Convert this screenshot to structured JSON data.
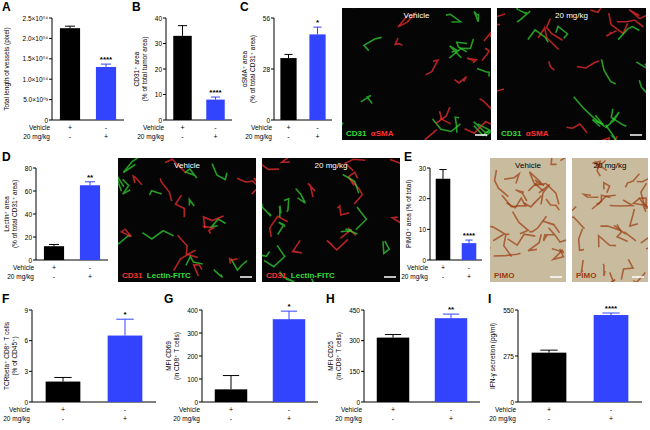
{
  "chart_data": [
    {
      "type": "bar",
      "title": "A",
      "ylabel": [
        "Total length of vessels (pixel)"
      ],
      "x_rows": [
        {
          "label": "Vehicle",
          "marks": [
            "+",
            "-"
          ]
        },
        {
          "label": "20 mg/kg",
          "marks": [
            "-",
            "+"
          ]
        }
      ],
      "values": [
        22500,
        13000
      ],
      "errors": [
        500,
        700
      ],
      "colors": [
        "#000000",
        "#3344ff"
      ],
      "significance": [
        null,
        "****"
      ],
      "ylim": [
        0,
        25000
      ],
      "yticks": [
        0,
        {
          "value": 5000,
          "label": "5.0×10⁰³"
        },
        {
          "value": 10000,
          "label": "1.0×10⁰⁴"
        },
        {
          "value": 15000,
          "label": "1.5×10⁰⁴"
        },
        {
          "value": 20000,
          "label": "2.0×10⁰⁴"
        },
        {
          "value": 25000,
          "label": "2.5×10⁰⁴"
        }
      ]
    },
    {
      "type": "bar",
      "title": "B",
      "ylabel": [
        "CD31⁺ area",
        "(% of total tumor area)"
      ],
      "x_rows": [
        {
          "label": "Vehicle",
          "marks": [
            "+",
            "-"
          ]
        },
        {
          "label": "20 mg/kg",
          "marks": [
            "-",
            "+"
          ]
        }
      ],
      "values": [
        33,
        8
      ],
      "errors": [
        4,
        1
      ],
      "colors": [
        "#000000",
        "#3344ff"
      ],
      "significance": [
        null,
        "****"
      ],
      "ylim": [
        0,
        40
      ],
      "yticks": [
        0,
        10,
        20,
        30,
        40
      ]
    },
    {
      "type": "bar",
      "title": "C",
      "ylabel": [
        "αSMA⁺ area",
        "(% of total CD31⁺ area)"
      ],
      "x_rows": [
        {
          "label": "Vehicle",
          "marks": [
            "+",
            "-"
          ]
        },
        {
          "label": "20 mg/kg",
          "marks": [
            "-",
            "+"
          ]
        }
      ],
      "values": [
        34,
        47
      ],
      "errors": [
        2,
        4
      ],
      "colors": [
        "#000000",
        "#3344ff"
      ],
      "significance": [
        null,
        "*"
      ],
      "ylim": [
        0,
        56
      ],
      "yticks": [
        0,
        28,
        56
      ],
      "micrographs": [
        {
          "label": "Vehicle",
          "color": "#050505",
          "stains": [
            {
              "text": "CD31",
              "color": "#33dd33"
            },
            {
              "text": "αSMA",
              "color": "#ff3030"
            }
          ]
        },
        {
          "label": "20 mg/kg",
          "color": "#050505",
          "stains": [
            {
              "text": "CD31",
              "color": "#33dd33"
            },
            {
              "text": "αSMA",
              "color": "#ff3030"
            }
          ]
        }
      ]
    },
    {
      "type": "bar",
      "title": "D",
      "ylabel": [
        "Lectin⁺ area",
        "(% of total CD31⁺ area)"
      ],
      "x_rows": [
        {
          "label": "Vehicle",
          "marks": [
            "+",
            "-"
          ]
        },
        {
          "label": "20 mg/kg",
          "marks": [
            "-",
            "+"
          ]
        }
      ],
      "values": [
        12,
        65
      ],
      "errors": [
        1.5,
        3
      ],
      "colors": [
        "#000000",
        "#3344ff"
      ],
      "significance": [
        null,
        "**"
      ],
      "ylim": [
        0,
        80
      ],
      "yticks": [
        0,
        20,
        40,
        60,
        80
      ],
      "micrographs": [
        {
          "label": "Vehicle",
          "color": "#050505",
          "stains": [
            {
              "text": "CD31",
              "color": "#ff3030"
            },
            {
              "text": "Lectin-FITC",
              "color": "#33dd33"
            }
          ]
        },
        {
          "label": "20 mg/kg",
          "color": "#050505",
          "stains": [
            {
              "text": "CD31",
              "color": "#ff3030"
            },
            {
              "text": "Lectin-FITC",
              "color": "#33dd33"
            }
          ]
        }
      ]
    },
    {
      "type": "bar",
      "title": "E",
      "ylabel": [
        "PIMO⁺ area (% of total)"
      ],
      "x_rows": [
        {
          "label": "Vehicle",
          "marks": [
            "+",
            "-"
          ]
        },
        {
          "label": "20 mg/kg",
          "marks": [
            "-",
            "+"
          ]
        }
      ],
      "values": [
        26.5,
        5.5
      ],
      "errors": [
        3,
        1
      ],
      "colors": [
        "#000000",
        "#3344ff"
      ],
      "significance": [
        null,
        "****"
      ],
      "ylim": [
        0,
        30
      ],
      "yticks": [
        0,
        10,
        20,
        30
      ],
      "micrographs": [
        {
          "label": "Vehicle",
          "color": "#c9bc9e",
          "stains": [
            {
              "text": "PIMO",
              "color": "#9a3a10"
            }
          ]
        },
        {
          "label": "20 mg/kg",
          "color": "#c9bc9e",
          "stains": [
            {
              "text": "PIMO",
              "color": "#9a3a10"
            }
          ]
        }
      ]
    },
    {
      "type": "bar",
      "title": "F",
      "ylabel": [
        "TCRbeta⁺ CD8⁺ T cells",
        "(% of CD45⁺)"
      ],
      "x_rows": [
        {
          "label": "Vehicle",
          "marks": [
            "+",
            "-"
          ]
        },
        {
          "label": "20 mg/kg",
          "marks": [
            "-",
            "+"
          ]
        }
      ],
      "values": [
        2.0,
        6.5
      ],
      "errors": [
        0.4,
        1.6
      ],
      "colors": [
        "#000000",
        "#3344ff"
      ],
      "significance": [
        null,
        "*"
      ],
      "ylim": [
        0,
        9
      ],
      "yticks": [
        0,
        3,
        6,
        9
      ]
    },
    {
      "type": "bar",
      "title": "G",
      "ylabel": [
        "MFI CD69",
        "(in CD8⁺ T cells)"
      ],
      "x_rows": [
        {
          "label": "Vehicle",
          "marks": [
            "+",
            "-"
          ]
        },
        {
          "label": "20 mg/kg",
          "marks": [
            "-",
            "+"
          ]
        }
      ],
      "values": [
        55,
        360
      ],
      "errors": [
        60,
        35
      ],
      "colors": [
        "#000000",
        "#3344ff"
      ],
      "significance": [
        null,
        "*"
      ],
      "ylim": [
        0,
        400
      ],
      "yticks": [
        0,
        100,
        200,
        300,
        400
      ]
    },
    {
      "type": "bar",
      "title": "H",
      "ylabel": [
        "MFI CD25",
        "(in CD8⁺ T cells)"
      ],
      "x_rows": [
        {
          "label": "Vehicle",
          "marks": [
            "+",
            "-"
          ]
        },
        {
          "label": "20 mg/kg",
          "marks": [
            "-",
            "+"
          ]
        }
      ],
      "values": [
        315,
        410
      ],
      "errors": [
        15,
        20
      ],
      "colors": [
        "#000000",
        "#3344ff"
      ],
      "significance": [
        null,
        "**"
      ],
      "ylim": [
        0,
        450
      ],
      "yticks": [
        0,
        150,
        300,
        450
      ]
    },
    {
      "type": "bar",
      "title": "I",
      "ylabel": [
        "IFN-γ secretion (pg/ml)"
      ],
      "x_rows": [
        {
          "label": "Vehicle",
          "marks": [
            "+",
            "-"
          ]
        },
        {
          "label": "20 mg/kg",
          "marks": [
            "-",
            "+"
          ]
        }
      ],
      "values": [
        295,
        520
      ],
      "errors": [
        15,
        12
      ],
      "colors": [
        "#000000",
        "#3344ff"
      ],
      "significance": [
        null,
        "****"
      ],
      "ylim": [
        0,
        550
      ],
      "yticks": [
        0,
        275,
        550
      ]
    }
  ]
}
